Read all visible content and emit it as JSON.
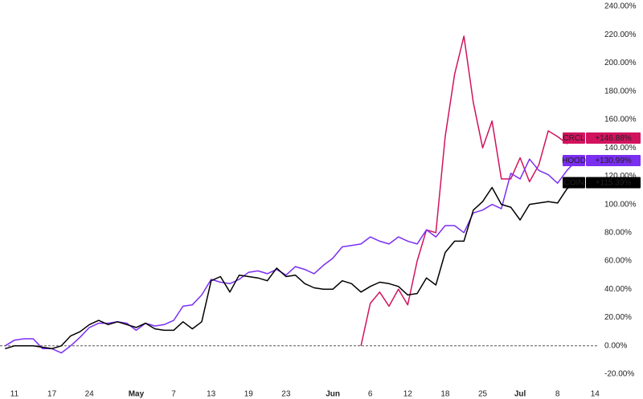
{
  "chart_data": {
    "type": "line",
    "categories": [
      null,
      "11",
      null,
      null,
      null,
      "17",
      null,
      null,
      null,
      "24",
      null,
      null,
      null,
      null,
      "May",
      null,
      null,
      null,
      "7",
      null,
      null,
      null,
      "13",
      null,
      null,
      null,
      "19",
      null,
      null,
      null,
      "23",
      null,
      null,
      null,
      null,
      "Jun",
      null,
      null,
      null,
      "6",
      null,
      null,
      null,
      "12",
      null,
      null,
      null,
      "18",
      null,
      null,
      null,
      "25",
      null,
      null,
      null,
      "Jul",
      null,
      null,
      null,
      "8",
      null,
      null,
      null,
      "14"
    ],
    "series": [
      {
        "name": "CRCL",
        "color": "#d1135e",
        "values": [
          null,
          null,
          null,
          null,
          null,
          null,
          null,
          null,
          null,
          null,
          null,
          null,
          null,
          null,
          null,
          null,
          null,
          null,
          null,
          null,
          null,
          null,
          null,
          null,
          null,
          null,
          null,
          null,
          null,
          null,
          null,
          null,
          null,
          null,
          null,
          null,
          null,
          null,
          0,
          30,
          38,
          28,
          40,
          29,
          60,
          82,
          80,
          148,
          192,
          219,
          172,
          140,
          159,
          118,
          118,
          133,
          116,
          128,
          152,
          148,
          143,
          146.88,
          null,
          null
        ],
        "value_labels": [
          null,
          null,
          null,
          null,
          null,
          null,
          null,
          null,
          null,
          null,
          null,
          null,
          null,
          null,
          null,
          null,
          null,
          null,
          null,
          null,
          null,
          null,
          null,
          null,
          null,
          null,
          null,
          null,
          null,
          null,
          null,
          null,
          null,
          null,
          null,
          null,
          null,
          null,
          null,
          null,
          null,
          null,
          null,
          null,
          null,
          null,
          null,
          null,
          null,
          null,
          null,
          null,
          null,
          null,
          null,
          null,
          null,
          null,
          null,
          null,
          null,
          "+146.88%",
          null,
          null
        ]
      },
      {
        "name": "HOOD",
        "color": "#7b2ff0",
        "values": [
          0,
          4,
          5,
          5,
          -2,
          -2,
          -5,
          0,
          6,
          13,
          16,
          16,
          17,
          16,
          11,
          16,
          14,
          15,
          18,
          28,
          29,
          36,
          47,
          45,
          44,
          47,
          52,
          53,
          51,
          54,
          50,
          56,
          54,
          51,
          57,
          62,
          70,
          71,
          72,
          77,
          74,
          72,
          77,
          74,
          72,
          82,
          77,
          85,
          85,
          80,
          94,
          96,
          100,
          97,
          122,
          118,
          132,
          124,
          121,
          115,
          124,
          130.99,
          null,
          null
        ],
        "value_labels": [
          null,
          null,
          null,
          null,
          null,
          null,
          null,
          null,
          null,
          null,
          null,
          null,
          null,
          null,
          null,
          null,
          null,
          null,
          null,
          null,
          null,
          null,
          null,
          null,
          null,
          null,
          null,
          null,
          null,
          null,
          null,
          null,
          null,
          null,
          null,
          null,
          null,
          null,
          null,
          null,
          null,
          null,
          null,
          null,
          null,
          null,
          null,
          null,
          null,
          null,
          null,
          null,
          null,
          null,
          null,
          null,
          null,
          null,
          null,
          null,
          null,
          "+130.99%",
          null,
          null
        ]
      },
      {
        "name": "COIN",
        "color": "#000000",
        "values": [
          -2,
          0,
          0,
          0,
          -1,
          -2,
          0,
          7,
          10,
          15,
          18,
          15,
          17,
          15,
          13,
          16,
          12,
          11,
          11,
          17,
          12,
          17,
          46,
          49,
          38,
          50,
          49,
          48,
          46,
          55,
          49,
          50,
          44,
          41,
          40,
          40,
          46,
          44,
          38,
          42,
          45,
          44,
          42,
          36,
          37,
          48,
          43,
          66,
          74,
          74,
          96,
          102,
          112,
          100,
          98,
          89,
          100,
          101,
          102,
          101,
          111,
          115.39,
          null,
          null
        ],
        "value_labels": [
          null,
          null,
          null,
          null,
          null,
          null,
          null,
          null,
          null,
          null,
          null,
          null,
          null,
          null,
          null,
          null,
          null,
          null,
          null,
          null,
          null,
          null,
          null,
          null,
          null,
          null,
          null,
          null,
          null,
          null,
          null,
          null,
          null,
          null,
          null,
          null,
          null,
          null,
          null,
          null,
          null,
          null,
          null,
          null,
          null,
          null,
          null,
          null,
          null,
          null,
          null,
          null,
          null,
          null,
          null,
          null,
          null,
          null,
          null,
          null,
          null,
          "+115.39%",
          null,
          null
        ]
      }
    ],
    "ylim": [
      -20,
      240
    ],
    "yticks": [
      {
        "value": -20,
        "label": "-20.00%"
      },
      {
        "value": 0,
        "label": "0.00%"
      },
      {
        "value": 20,
        "label": "20.00%"
      },
      {
        "value": 40,
        "label": "40.00%"
      },
      {
        "value": 60,
        "label": "60.00%"
      },
      {
        "value": 80,
        "label": "80.00%"
      },
      {
        "value": 100,
        "label": "100.00%"
      },
      {
        "value": 120,
        "label": "120.00%"
      },
      {
        "value": 140,
        "label": "140.00%"
      },
      {
        "value": 160,
        "label": "160.00%"
      },
      {
        "value": 180,
        "label": "180.00%"
      },
      {
        "value": 200,
        "label": "200.00%"
      },
      {
        "value": 220,
        "label": "220.00%"
      },
      {
        "value": 240,
        "label": "240.00%"
      }
    ],
    "reference_line": 0,
    "grid": false
  }
}
